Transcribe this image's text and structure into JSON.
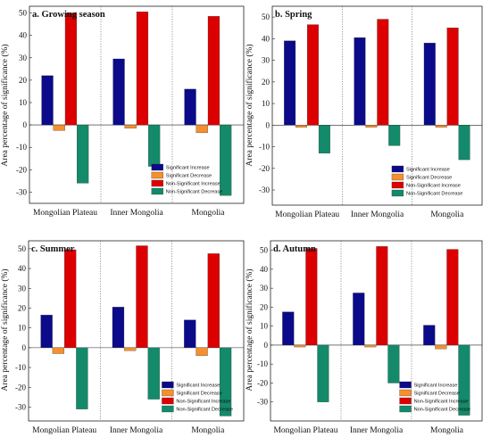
{
  "figure": {
    "legend": [
      "Significant Increase",
      "Significant Decrease",
      "Non-Significant Increase",
      "Non-Significant Decrease"
    ]
  },
  "colors": {
    "Significant Increase": "#0a0a8a",
    "Significant Decrease": "#f5902e",
    "Non-Significant Increase": "#dd0000",
    "Non-Significant Decrease": "#138a6a"
  },
  "chart_data": [
    {
      "type": "bar",
      "title": "a. Growing season",
      "ylabel": "Area percentage of significance (%)",
      "xlabel": "",
      "categories": [
        "Mongolian Plateau",
        "Inner Mongolia",
        "Mongolia"
      ],
      "ylim": [
        -35,
        53
      ],
      "yticks": [
        -30,
        -20,
        -10,
        0,
        10,
        20,
        30,
        40,
        50
      ],
      "legend_position": "lower-center",
      "series": [
        {
          "name": "Significant Increase",
          "values": [
            22,
            29.5,
            16
          ]
        },
        {
          "name": "Significant Decrease",
          "values": [
            -2.5,
            -1.5,
            -3.5
          ]
        },
        {
          "name": "Non-Significant Increase",
          "values": [
            50,
            50.5,
            48.5
          ]
        },
        {
          "name": "Non-Significant Decrease",
          "values": [
            -26,
            -18.5,
            -31.5
          ]
        }
      ]
    },
    {
      "type": "bar",
      "title": "b. Spring",
      "ylabel": "Area percentage of significance (%)",
      "xlabel": "",
      "categories": [
        "Mongolian Plateau",
        "Inner Mongolia",
        "Mongolia"
      ],
      "ylim": [
        -37,
        55
      ],
      "yticks": [
        -30,
        -20,
        -10,
        0,
        10,
        20,
        30,
        40,
        50
      ],
      "legend_position": "lower-center",
      "series": [
        {
          "name": "Significant Increase",
          "values": [
            39,
            40.5,
            38
          ]
        },
        {
          "name": "Significant Decrease",
          "values": [
            -1,
            -1,
            -1
          ]
        },
        {
          "name": "Non-Significant Increase",
          "values": [
            46.5,
            49,
            45
          ]
        },
        {
          "name": "Non-Significant Decrease",
          "values": [
            -13,
            -9.5,
            -16
          ]
        }
      ]
    },
    {
      "type": "bar",
      "title": "c. Summer",
      "ylabel": "Area percentage of significance (%)",
      "xlabel": "",
      "categories": [
        "Mongolian Plateau",
        "Inner Mongolia",
        "Mongolia"
      ],
      "ylim": [
        -37,
        54
      ],
      "yticks": [
        -30,
        -20,
        -10,
        0,
        10,
        20,
        30,
        40,
        50
      ],
      "legend_position": "lower-center",
      "series": [
        {
          "name": "Significant Increase",
          "values": [
            16.5,
            20.5,
            14
          ]
        },
        {
          "name": "Significant Decrease",
          "values": [
            -3,
            -1.5,
            -4
          ]
        },
        {
          "name": "Non-Significant Increase",
          "values": [
            49.5,
            51.5,
            47.5
          ]
        },
        {
          "name": "Non-Significant Decrease",
          "values": [
            -31,
            -26,
            -34.5
          ]
        }
      ]
    },
    {
      "type": "bar",
      "title": "d. Autumn",
      "ylabel": "Area percentage of significance (%)",
      "xlabel": "",
      "categories": [
        "Mongolian Plateau",
        "Inner Mongolia",
        "Mongolia"
      ],
      "ylim": [
        -40,
        55
      ],
      "yticks": [
        -30,
        -20,
        -10,
        0,
        10,
        20,
        30,
        40,
        50
      ],
      "legend_position": "lower-center",
      "series": [
        {
          "name": "Significant Increase",
          "values": [
            17.5,
            27.5,
            10.5
          ]
        },
        {
          "name": "Significant Decrease",
          "values": [
            -1,
            -1,
            -2
          ]
        },
        {
          "name": "Non-Significant Increase",
          "values": [
            51,
            52,
            50.5
          ]
        },
        {
          "name": "Non-Significant Decrease",
          "values": [
            -30,
            -20,
            -37
          ]
        }
      ]
    }
  ]
}
